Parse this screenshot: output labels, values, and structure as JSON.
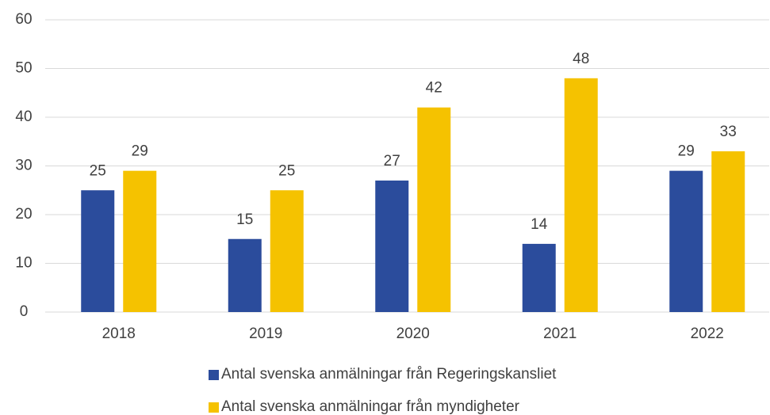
{
  "chart_data": {
    "type": "bar",
    "categories": [
      "2018",
      "2019",
      "2020",
      "2021",
      "2022"
    ],
    "series": [
      {
        "name": "Antal svenska anmälningar från Regeringskansliet",
        "color": "#2b4c9c",
        "values": [
          25,
          15,
          27,
          14,
          29
        ]
      },
      {
        "name": "Antal svenska anmälningar från myndigheter",
        "color": "#f5c200",
        "values": [
          29,
          25,
          42,
          48,
          33
        ]
      }
    ],
    "ylim": [
      0,
      60
    ],
    "yticks": [
      0,
      10,
      20,
      30,
      40,
      50,
      60
    ],
    "grid": true,
    "legend": "bottom"
  }
}
